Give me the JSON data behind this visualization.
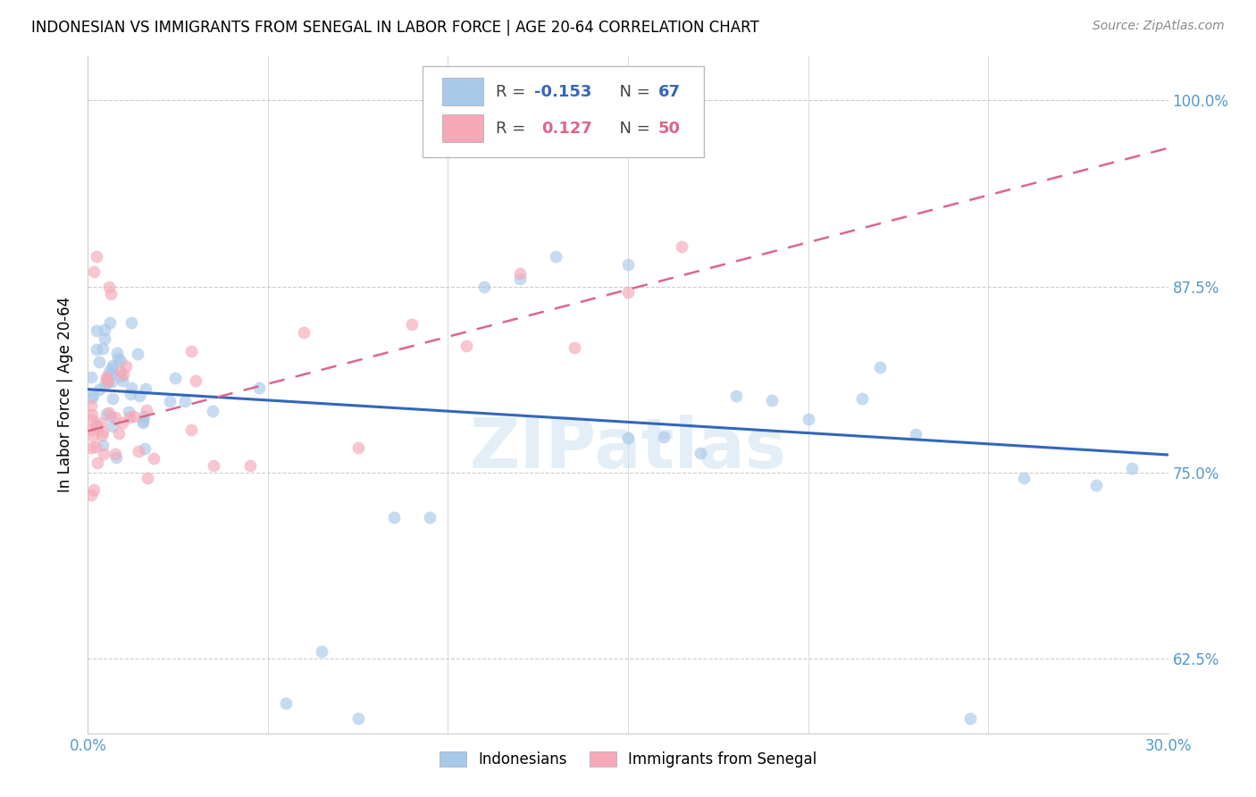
{
  "title": "INDONESIAN VS IMMIGRANTS FROM SENEGAL IN LABOR FORCE | AGE 20-64 CORRELATION CHART",
  "source": "Source: ZipAtlas.com",
  "ylabel": "In Labor Force | Age 20-64",
  "xlim": [
    0.0,
    0.3
  ],
  "ylim": [
    0.575,
    1.03
  ],
  "ytick_labels": [
    "62.5%",
    "75.0%",
    "87.5%",
    "100.0%"
  ],
  "yticks": [
    0.625,
    0.75,
    0.875,
    1.0
  ],
  "grid_color": "#cccccc",
  "background_color": "#ffffff",
  "indonesian_color": "#a8c8e8",
  "senegal_color": "#f4a8b8",
  "indonesian_line_color": "#3366bb",
  "senegal_line_color": "#dd6688",
  "r_indonesian": -0.153,
  "n_indonesian": 67,
  "r_senegal": 0.127,
  "n_senegal": 50,
  "watermark": "ZIPatlas",
  "legend_label_1": "Indonesians",
  "legend_label_2": "Immigrants from Senegal",
  "indo_line_x0": 0.0,
  "indo_line_y0": 0.806,
  "indo_line_x1": 0.3,
  "indo_line_y1": 0.762,
  "sen_line_x0": 0.0,
  "sen_line_y0": 0.778,
  "sen_line_x1": 0.3,
  "sen_line_y1": 0.968
}
